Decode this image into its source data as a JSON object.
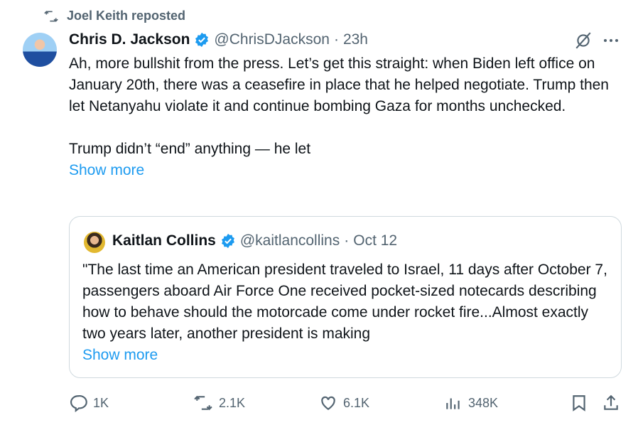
{
  "repost": {
    "icon": "repost-icon",
    "text": "Joel Keith reposted"
  },
  "tweet": {
    "name": "Chris D. Jackson",
    "handle": "@ChrisDJackson",
    "time": "23h",
    "separator": "·",
    "lines": [
      "Ah, more bullshit from the press. Let’s get this straight: when Biden left office on January 20th, there was a ceasefire in place that he helped negotiate. Trump then let Netanyahu violate it and continue bombing Gaza for months unchecked.",
      "Trump didn’t “end” anything — he let"
    ],
    "show_more": "Show more"
  },
  "quote": {
    "name": "Kaitlan Collins",
    "handle": "@kaitlancollins",
    "time": "Oct 12",
    "separator": "·",
    "text": "\"The last time an American president traveled to Israel, 11 days after October 7, passengers aboard Air Force One received pocket-sized notecards describing how to behave should the motorcade come under rocket fire...Almost exactly two years later, another president is making",
    "show_more": "Show more"
  },
  "actions": {
    "replies": "1K",
    "reposts": "2.1K",
    "likes": "6.1K",
    "views": "348K"
  },
  "colors": {
    "accent": "#1d9bf0",
    "text": "#0f1419",
    "muted": "#536471",
    "border": "#cfd9de"
  }
}
